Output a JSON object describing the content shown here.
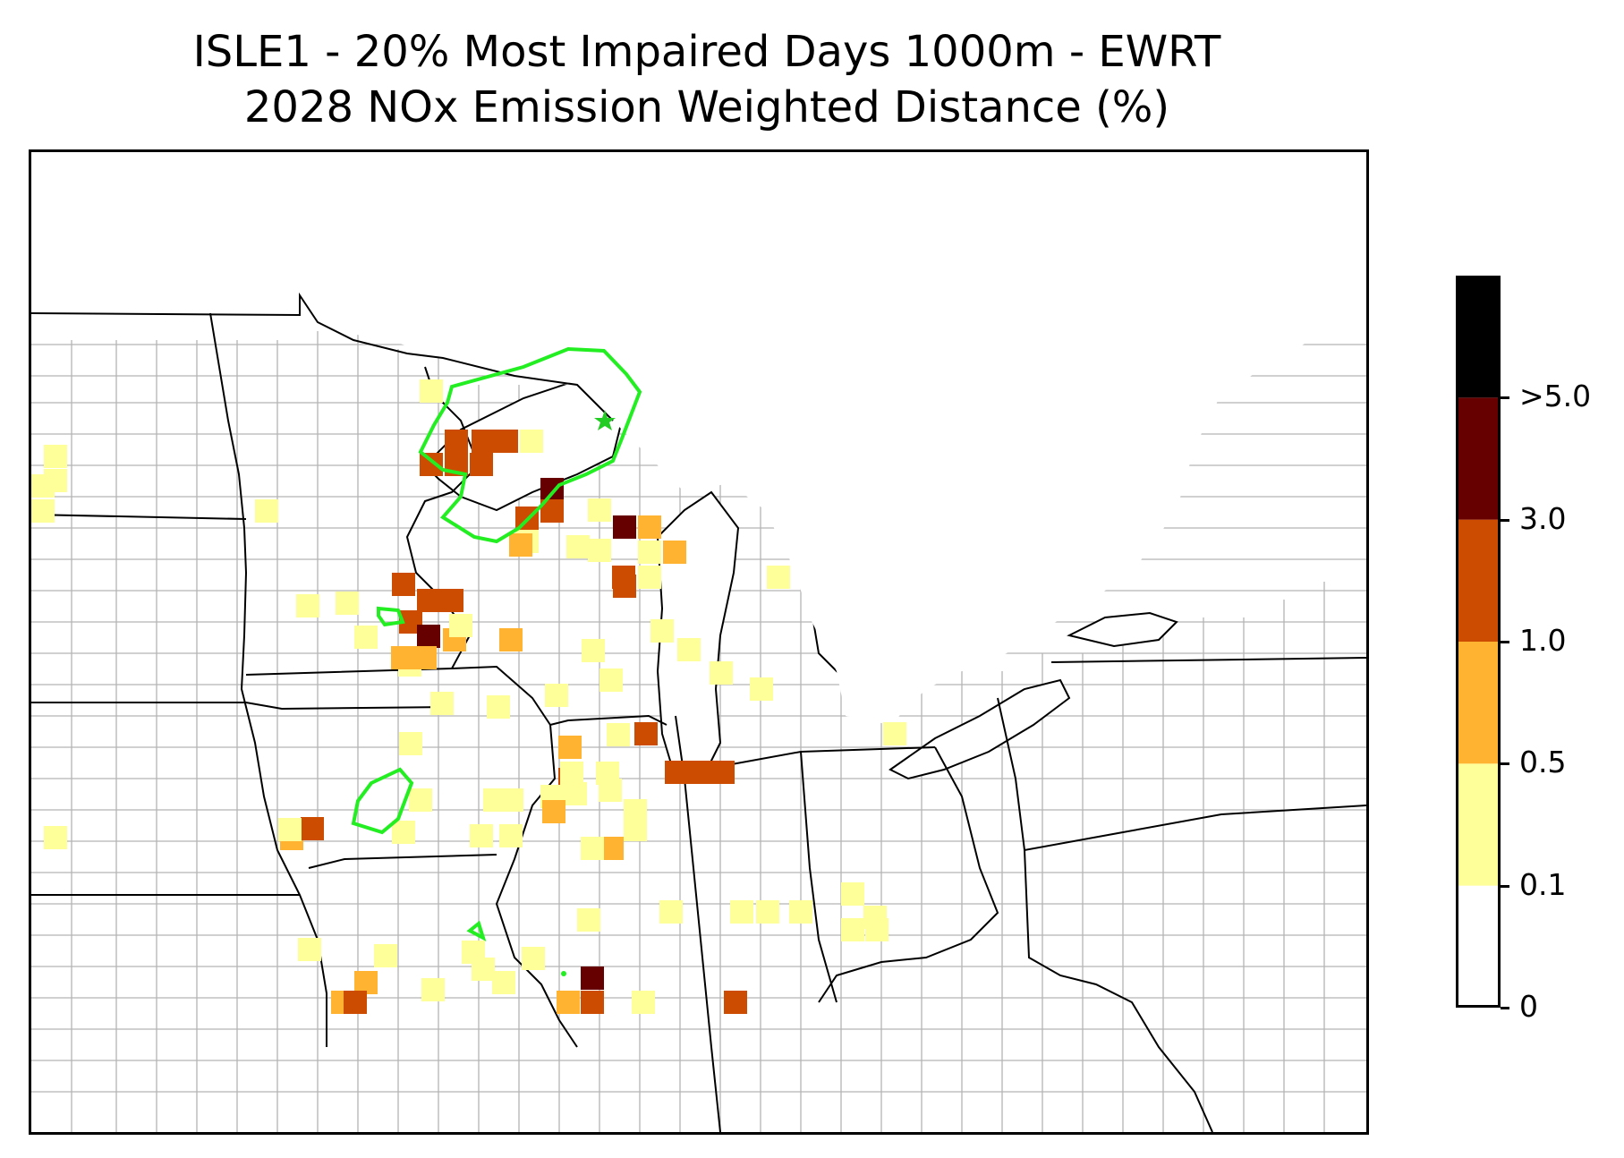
{
  "title": {
    "line1": "ISLE1 - 20% Most Impaired Days 1000m - EWRT",
    "line2": "2028 NOx Emission Weighted Distance (%)"
  },
  "colorbar": {
    "levels": [
      {
        "label": "0",
        "value": 0,
        "color": "#ffffff"
      },
      {
        "label": "0.1",
        "value": 0.1,
        "color": "#ffff99"
      },
      {
        "label": "0.5",
        "value": 0.5,
        "color": "#ffb331"
      },
      {
        "label": "1.0",
        "value": 1.0,
        "color": "#cc4c02"
      },
      {
        "label": "3.0",
        "value": 3.0,
        "color": "#660000"
      },
      {
        "label": ">5.0",
        "value": 5.0,
        "color": "#000000"
      }
    ]
  },
  "colors": {
    "state_border": "#000000",
    "county_border": "#a8a8a8",
    "contour": "#22ee22",
    "site_marker": "#22cc22"
  },
  "site_marker": {
    "icon": "star-icon",
    "name": "ISLE1"
  }
}
